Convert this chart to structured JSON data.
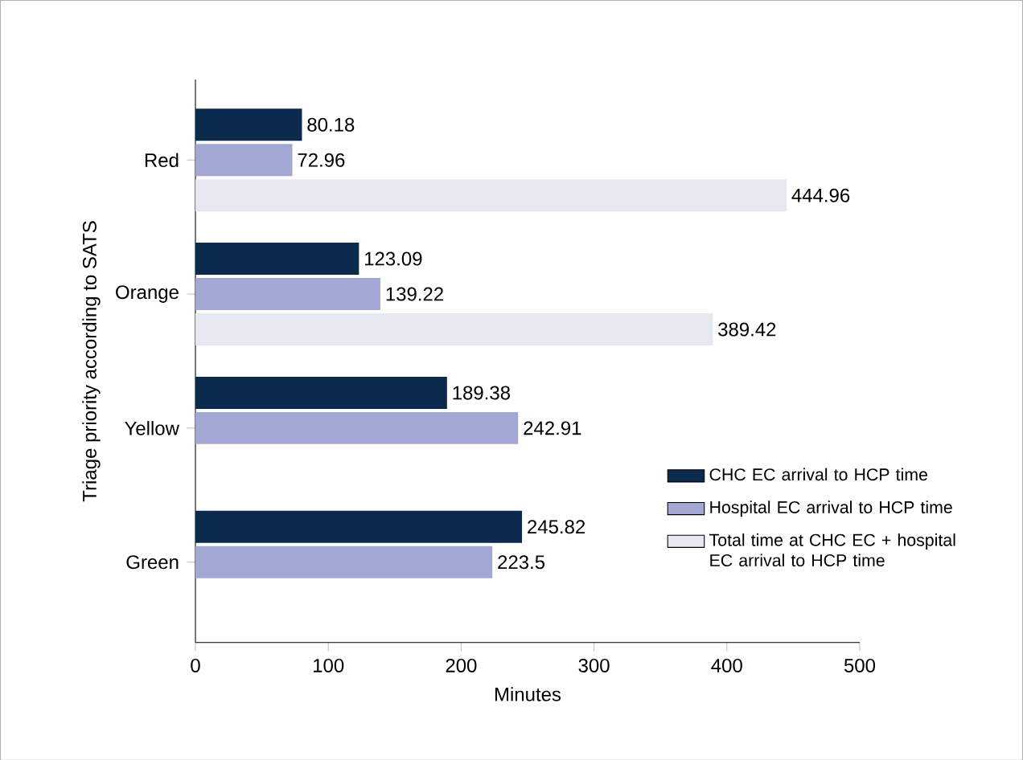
{
  "chart_data": {
    "type": "bar",
    "orientation": "horizontal",
    "xlabel": "Minutes",
    "ylabel": "Triage priority according to SATS",
    "categories": [
      "Red",
      "Orange",
      "Yellow",
      "Green"
    ],
    "series": [
      {
        "name": "CHC EC arrival to HCP time",
        "color": "#0c2a4d",
        "values": [
          80.18,
          123.09,
          189.38,
          245.82
        ]
      },
      {
        "name": "Hospital EC arrival to HCP time",
        "color": "#a2a8d3",
        "values": [
          72.96,
          139.22,
          242.91,
          223.5
        ]
      },
      {
        "name": "Total time at CHC EC + hospital EC arrival to HCP time",
        "color": "#e6e8f1",
        "values": [
          444.96,
          389.42,
          null,
          null
        ]
      }
    ],
    "xlim": [
      0,
      500
    ],
    "xticks": [
      0,
      100,
      200,
      300,
      400,
      500
    ],
    "data_labels": true,
    "legend": "bottom right"
  }
}
